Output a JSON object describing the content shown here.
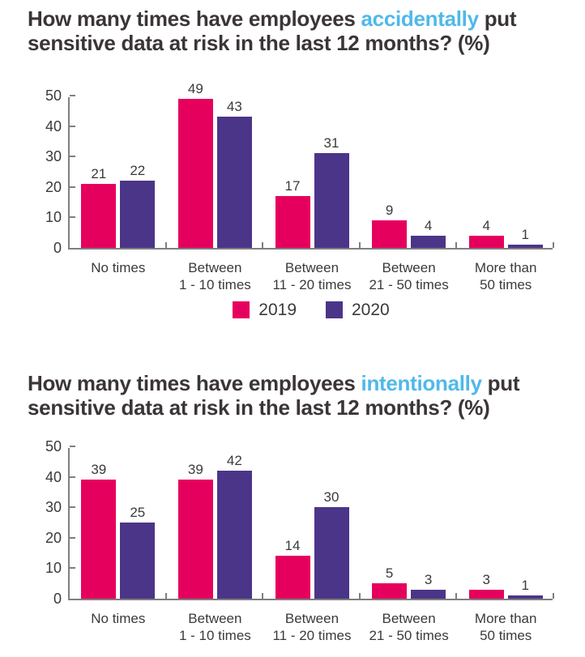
{
  "page": {
    "background": "#ffffff"
  },
  "colors": {
    "series_2019": "#e6005e",
    "series_2020": "#4b3589",
    "title_text": "#3b3536",
    "highlight_text": "#4fb9e9",
    "axis": "#7f7f7f",
    "label_text": "#3a3a3a"
  },
  "legend": {
    "items": [
      {
        "label": "2019",
        "color": "#e6005e"
      },
      {
        "label": "2020",
        "color": "#4b3589"
      }
    ]
  },
  "chart_data": [
    {
      "type": "bar",
      "title": "How many times have employees accidentally put sensitive data at risk in the last 12 months? (%)",
      "title_parts": {
        "prefix": "How many times have employees ",
        "highlight": "accidentally",
        "suffix": " put sensitive data at risk in the last 12 months? (%)"
      },
      "categories": [
        "No times",
        "Between 1 - 10 times",
        "Between 11 - 20 times",
        "Between 21 - 50 times",
        "More than 50 times"
      ],
      "category_lines": [
        [
          "No times"
        ],
        [
          "Between",
          "1 - 10 times"
        ],
        [
          "Between",
          "11 - 20 times"
        ],
        [
          "Between",
          "21 - 50 times"
        ],
        [
          "More than",
          "50 times"
        ]
      ],
      "series": [
        {
          "name": "2019",
          "values": [
            21,
            49,
            17,
            9,
            4
          ]
        },
        {
          "name": "2020",
          "values": [
            22,
            43,
            31,
            4,
            1
          ]
        }
      ],
      "xlabel": "",
      "ylabel": "",
      "ylim": [
        0,
        50
      ],
      "yticks": [
        0,
        10,
        20,
        30,
        40,
        50
      ],
      "grid": false,
      "value_labels": true,
      "legend_position": "below-chart"
    },
    {
      "type": "bar",
      "title": "How many times have employees intentionally put sensitive data at risk in the last 12 months? (%)",
      "title_parts": {
        "prefix": "How many times have employees ",
        "highlight": "intentionally",
        "suffix": " put sensitive data at risk in the last 12 months? (%)"
      },
      "categories": [
        "No times",
        "Between 1 - 10 times",
        "Between 11 - 20 times",
        "Between 21 - 50 times",
        "More than 50 times"
      ],
      "category_lines": [
        [
          "No times"
        ],
        [
          "Between",
          "1 - 10 times"
        ],
        [
          "Between",
          "11 - 20 times"
        ],
        [
          "Between",
          "21 - 50 times"
        ],
        [
          "More than",
          "50 times"
        ]
      ],
      "series": [
        {
          "name": "2019",
          "values": [
            39,
            39,
            14,
            5,
            3
          ]
        },
        {
          "name": "2020",
          "values": [
            25,
            42,
            30,
            3,
            1
          ]
        }
      ],
      "xlabel": "",
      "ylabel": "",
      "ylim": [
        0,
        50
      ],
      "yticks": [
        0,
        10,
        20,
        30,
        40,
        50
      ],
      "grid": false,
      "value_labels": true,
      "legend_position": "none"
    }
  ]
}
